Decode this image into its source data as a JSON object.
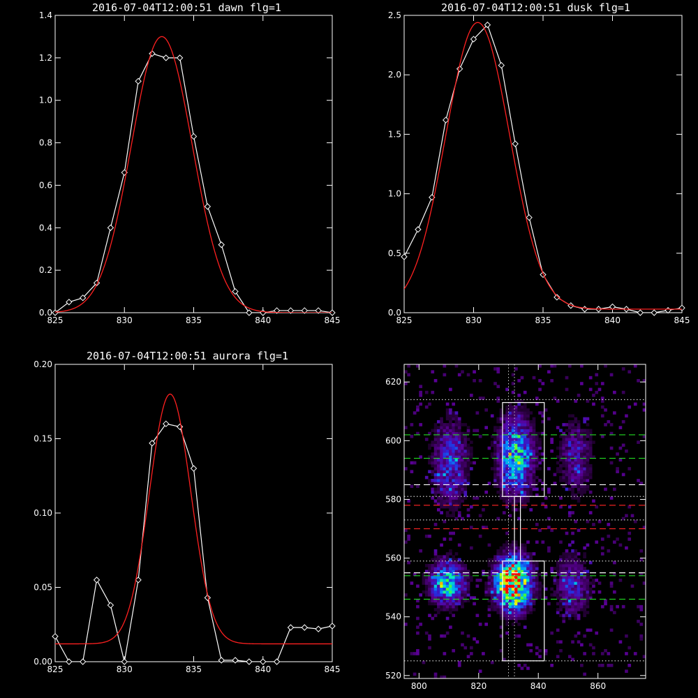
{
  "chart_data": [
    {
      "type": "line",
      "title": "2016-07-04T12:00:51 dawn flg=1",
      "xlim": [
        825,
        845
      ],
      "ylim": [
        0,
        1.4
      ],
      "xticks": [
        "825",
        "830",
        "835",
        "840",
        "845"
      ],
      "xtick_values": [
        825,
        830,
        835,
        840,
        845
      ],
      "yticks": [
        "0.0",
        "0.2",
        "0.4",
        "0.6",
        "0.8",
        "1.0",
        "1.2",
        "1.4"
      ],
      "ytick_values": [
        0,
        0.2,
        0.4,
        0.6,
        0.8,
        1.0,
        1.2,
        1.4
      ],
      "series": [
        {
          "kind": "observed",
          "color": "#ffffff",
          "marker": "diamond",
          "x": [
            825,
            826,
            827,
            828,
            829,
            830,
            831,
            832,
            833,
            834,
            835,
            836,
            837,
            838,
            839,
            840,
            841,
            842,
            843,
            844,
            845
          ],
          "y": [
            0.0,
            0.05,
            0.07,
            0.14,
            0.4,
            0.66,
            1.09,
            1.22,
            1.2,
            1.2,
            0.83,
            0.5,
            0.32,
            0.1,
            0.0,
            0.0,
            0.01,
            0.01,
            0.01,
            0.01,
            0.0
          ]
        },
        {
          "kind": "fit",
          "color": "#ff2020",
          "amp": 1.3,
          "center": 832.7,
          "sigma": 2.2,
          "base": 0.0
        }
      ]
    },
    {
      "type": "line",
      "title": "2016-07-04T12:00:51 dusk flg=1",
      "xlim": [
        825,
        845
      ],
      "ylim": [
        0,
        2.5
      ],
      "xticks": [
        "825",
        "830",
        "835",
        "840",
        "845"
      ],
      "xtick_values": [
        825,
        830,
        835,
        840,
        845
      ],
      "yticks": [
        "0.0",
        "0.5",
        "1.0",
        "1.5",
        "2.0",
        "2.5"
      ],
      "ytick_values": [
        0,
        0.5,
        1.0,
        1.5,
        2.0,
        2.5
      ],
      "series": [
        {
          "kind": "observed",
          "color": "#ffffff",
          "marker": "diamond",
          "x": [
            825,
            826,
            827,
            828,
            829,
            830,
            831,
            832,
            833,
            834,
            835,
            836,
            837,
            838,
            839,
            840,
            841,
            842,
            843,
            844,
            845
          ],
          "y": [
            0.47,
            0.7,
            0.97,
            1.62,
            2.05,
            2.3,
            2.42,
            2.08,
            1.42,
            0.8,
            0.32,
            0.13,
            0.06,
            0.03,
            0.03,
            0.05,
            0.03,
            0.0,
            0.0,
            0.02,
            0.04
          ]
        },
        {
          "kind": "fit",
          "color": "#ff2020",
          "amp": 2.41,
          "center": 830.3,
          "sigma": 2.3,
          "base": 0.03
        }
      ]
    },
    {
      "type": "line",
      "title": "2016-07-04T12:00:51 aurora flg=1",
      "xlim": [
        825,
        845
      ],
      "ylim": [
        0,
        0.2
      ],
      "xticks": [
        "825",
        "830",
        "835",
        "840",
        "845"
      ],
      "xtick_values": [
        825,
        830,
        835,
        840,
        845
      ],
      "yticks": [
        "0.00",
        "0.05",
        "0.10",
        "0.15",
        "0.20"
      ],
      "ytick_values": [
        0,
        0.05,
        0.1,
        0.15,
        0.2
      ],
      "series": [
        {
          "kind": "observed",
          "color": "#ffffff",
          "marker": "diamond",
          "x": [
            825,
            826,
            827,
            828,
            829,
            830,
            831,
            832,
            833,
            834,
            835,
            836,
            837,
            838,
            839,
            840,
            841,
            842,
            843,
            844,
            845
          ],
          "y": [
            0.017,
            0.0,
            0.0,
            0.055,
            0.038,
            0.0,
            0.055,
            0.147,
            0.16,
            0.158,
            0.13,
            0.043,
            0.001,
            0.001,
            0.0,
            0.0,
            0.0,
            0.023,
            0.023,
            0.022,
            0.024
          ]
        },
        {
          "kind": "fit",
          "color": "#ff2020",
          "amp": 0.168,
          "center": 833.3,
          "sigma": 1.5,
          "base": 0.012
        }
      ]
    },
    {
      "type": "heatmap",
      "title": "",
      "xlim": [
        795,
        876
      ],
      "ylim": [
        519,
        626
      ],
      "xticks": [
        "800",
        "820",
        "840",
        "860"
      ],
      "xtick_values": [
        800,
        820,
        840,
        860
      ],
      "yticks": [
        "520",
        "540",
        "560",
        "580",
        "600",
        "620"
      ],
      "ytick_values": [
        520,
        540,
        560,
        580,
        600,
        620
      ],
      "blobs": [
        {
          "x": 832,
          "y": 594,
          "sx": 4,
          "sy": 9,
          "amp": 0.55
        },
        {
          "x": 831,
          "y": 551,
          "sx": 4,
          "sy": 6,
          "amp": 1.0
        },
        {
          "x": 809,
          "y": 551,
          "sx": 4,
          "sy": 5,
          "amp": 0.55
        },
        {
          "x": 810,
          "y": 592,
          "sx": 4,
          "sy": 10,
          "amp": 0.32
        },
        {
          "x": 851,
          "y": 550,
          "sx": 4,
          "sy": 7,
          "amp": 0.28
        },
        {
          "x": 852,
          "y": 594,
          "sx": 4,
          "sy": 9,
          "amp": 0.22
        }
      ],
      "boxes": [
        {
          "x0": 828,
          "x1": 842,
          "y0": 581,
          "y1": 613
        },
        {
          "x0": 828,
          "x1": 842,
          "y0": 525,
          "y1": 559
        }
      ],
      "connector": {
        "x0": 832,
        "x1": 834,
        "y0": 559,
        "y1": 581
      },
      "lines": [
        {
          "y": 614,
          "color": "#cccccc",
          "style": "dotted"
        },
        {
          "y": 602,
          "color": "#22dd22",
          "style": "dashed"
        },
        {
          "y": 594,
          "color": "#22dd22",
          "style": "dashed"
        },
        {
          "y": 585,
          "color": "#ffffff",
          "style": "dashed"
        },
        {
          "y": 581,
          "color": "#cccccc",
          "style": "dotted"
        },
        {
          "y": 578,
          "color": "#ee2222",
          "style": "dashed"
        },
        {
          "y": 573,
          "color": "#cccccc",
          "style": "dotted"
        },
        {
          "y": 570,
          "color": "#ee2222",
          "style": "dashed"
        },
        {
          "y": 559,
          "color": "#cccccc",
          "style": "dotted"
        },
        {
          "y": 555,
          "color": "#ffffff",
          "style": "dashed"
        },
        {
          "y": 554,
          "color": "#22dd22",
          "style": "dashed"
        },
        {
          "y": 546,
          "color": "#22dd22",
          "style": "dashed"
        },
        {
          "y": 525,
          "color": "#cccccc",
          "style": "dotted"
        }
      ],
      "vlines": [
        {
          "x": 830,
          "color": "#cccccc",
          "style": "dotted"
        },
        {
          "x": 832,
          "color": "#cccccc",
          "style": "dotted"
        }
      ]
    }
  ]
}
